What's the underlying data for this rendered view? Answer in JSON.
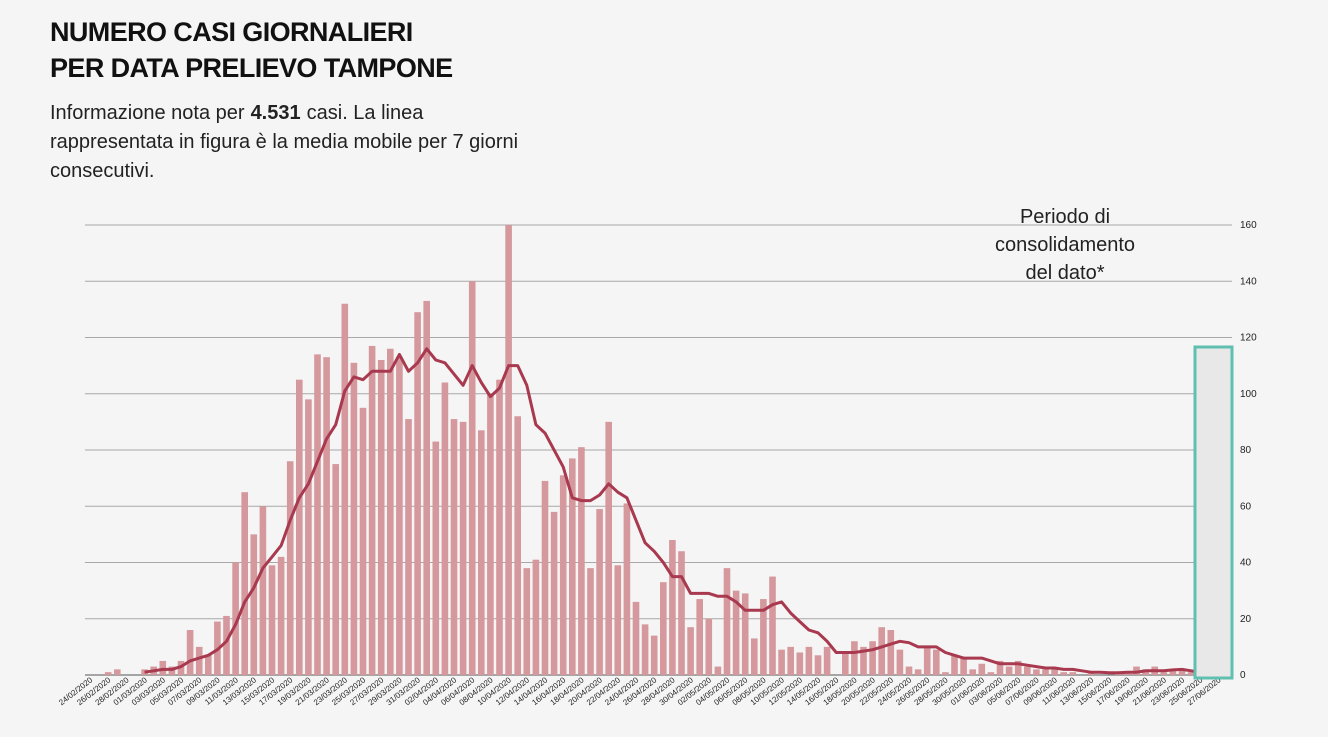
{
  "chart_data": {
    "type": "bar",
    "title": [
      "NUMERO CASI GIORNALIERI",
      "PER DATA PRELIEVO TAMPONE"
    ],
    "subtitle": [
      "Informazione nota per",
      "4.531",
      "casi. La linea rappresentata in figura è la media mobile per 7 giorni consecutivi."
    ],
    "annotation": [
      "Periodo di",
      "consolidamento",
      "del dato*"
    ],
    "categories": [
      "24/02/2020",
      null,
      "26/02/2020",
      null,
      "28/02/2020",
      null,
      "01/03/2020",
      null,
      "03/03/2020",
      null,
      "05/03/2020",
      null,
      "07/03/2020",
      null,
      "09/03/2020",
      null,
      "11/03/2020",
      null,
      "13/03/2020",
      null,
      "15/03/2020",
      null,
      "17/03/2020",
      null,
      "19/03/2020",
      null,
      "21/03/2020",
      null,
      "23/03/2020",
      null,
      "25/03/2020",
      null,
      "27/03/2020",
      null,
      "29/03/2020",
      null,
      "31/03/2020",
      null,
      "02/04/2020",
      null,
      "04/04/2020",
      null,
      "06/04/2020",
      null,
      "08/04/2020",
      null,
      "10/04/2020",
      null,
      "12/04/2020",
      null,
      "14/04/2020",
      null,
      "16/04/2020",
      null,
      "18/04/2020",
      null,
      "20/04/2020",
      null,
      "22/04/2020",
      null,
      "24/04/2020",
      null,
      "26/04/2020",
      null,
      "28/04/2020",
      null,
      "30/04/2020",
      null,
      "02/05/2020",
      null,
      "04/05/2020",
      null,
      "06/05/2020",
      null,
      "08/05/2020",
      null,
      "10/05/2020",
      null,
      "12/05/2020",
      null,
      "14/05/2020",
      null,
      "16/05/2020",
      null,
      "18/05/2020",
      null,
      "20/05/2020",
      null,
      "22/05/2020",
      null,
      "24/05/2020",
      null,
      "26/05/2020",
      null,
      "28/05/2020",
      null,
      "30/05/2020",
      null,
      "01/06/2020",
      null,
      "03/06/2020",
      null,
      "05/06/2020",
      null,
      "07/06/2020",
      null,
      "09/06/2020",
      null,
      "11/06/2020",
      null,
      "13/06/2020",
      null,
      "15/06/2020",
      null,
      "17/06/2020",
      null,
      "19/06/2020",
      null,
      "21/06/2020",
      null,
      "23/06/2020",
      null,
      "25/06/2020",
      null,
      "27/06/2020"
    ],
    "series": [
      {
        "type": "bar",
        "color": "#d4989d",
        "values": [
          0,
          0,
          1,
          2,
          0,
          0,
          2,
          3,
          5,
          3,
          5,
          16,
          10,
          7,
          19,
          21,
          40,
          65,
          50,
          60,
          39,
          42,
          76,
          105,
          98,
          114,
          113,
          75,
          132,
          111,
          95,
          117,
          112,
          116,
          113,
          91,
          129,
          133,
          83,
          104,
          91,
          90,
          140,
          87,
          100,
          105,
          160,
          92,
          38,
          41,
          69,
          58,
          71,
          77,
          81,
          38,
          59,
          90,
          39,
          61,
          26,
          18,
          14,
          33,
          48,
          44,
          17,
          27,
          20,
          3,
          38,
          30,
          29,
          13,
          27,
          35,
          9,
          10,
          8,
          10,
          7,
          10,
          0,
          8,
          12,
          10,
          12,
          17,
          16,
          9,
          3,
          2,
          10,
          9,
          1,
          7,
          6,
          2,
          4,
          1,
          5,
          3,
          5,
          3,
          2,
          2,
          2,
          1,
          1,
          0,
          1,
          0,
          0,
          1,
          1,
          3,
          2,
          3,
          1,
          2,
          2,
          1,
          1,
          0,
          0
        ]
      },
      {
        "type": "line",
        "color": "#a8394e",
        "values": [
          null,
          null,
          null,
          null,
          null,
          null,
          1,
          1.5,
          2,
          2,
          3,
          5,
          6,
          7,
          9,
          12,
          18,
          26,
          31,
          38,
          42,
          46,
          55,
          63,
          68,
          76,
          84,
          89,
          101,
          106,
          105,
          108,
          108,
          108,
          114,
          108,
          111,
          116,
          112,
          111,
          107,
          103,
          110,
          104,
          99,
          102,
          110,
          110,
          103,
          89,
          86,
          80,
          74,
          63,
          62,
          62,
          64,
          68,
          65,
          63,
          55,
          47,
          44,
          40,
          35,
          35,
          29,
          29,
          29,
          28,
          28,
          26,
          23,
          23,
          23,
          25,
          26,
          22,
          19,
          16,
          15,
          12,
          8,
          8,
          8,
          8.5,
          9,
          10,
          11,
          12,
          11.5,
          10,
          10,
          10,
          8,
          7,
          6,
          6,
          6,
          5,
          4,
          4,
          4,
          3.5,
          3,
          2.5,
          2.5,
          2,
          2,
          1.5,
          1,
          1,
          0.8,
          0.8,
          1,
          1,
          1.5,
          1.5,
          1.5,
          1.8,
          2,
          1.5,
          1,
          1,
          1
        ]
      }
    ],
    "ylim": [
      0,
      160
    ],
    "yticks": [
      0,
      20,
      40,
      60,
      80,
      100,
      120,
      140,
      160
    ],
    "grid": true,
    "y_axis_side": "right"
  }
}
